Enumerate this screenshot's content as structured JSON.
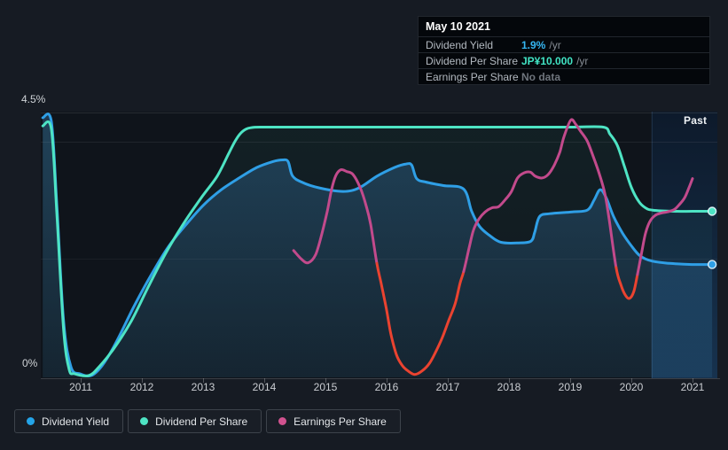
{
  "page": {
    "background": "#161b23"
  },
  "y_axis": {
    "max_label": "4.5%",
    "min_label": "0%"
  },
  "x_axis": {
    "years": [
      "2011",
      "2012",
      "2013",
      "2014",
      "2015",
      "2016",
      "2017",
      "2018",
      "2019",
      "2020",
      "2021"
    ]
  },
  "past_label": "Past",
  "tooltip": {
    "date": "May 10 2021",
    "rows": [
      {
        "label": "Dividend Yield",
        "value": "1.9%",
        "unit": "/yr",
        "color": "#35b6f2"
      },
      {
        "label": "Dividend Per Share",
        "value": "JP¥10.000",
        "unit": "/yr",
        "color": "#41e4c4"
      },
      {
        "label": "Earnings Per Share",
        "value": "No data",
        "unit": "",
        "color": "#6f757d"
      }
    ]
  },
  "legend": {
    "items": [
      {
        "id": "dividend-yield",
        "label": "Dividend Yield",
        "color": "#24a4e8"
      },
      {
        "id": "dividend-per-share",
        "label": "Dividend Per Share",
        "color": "#4ee4c4"
      },
      {
        "id": "earnings-per-share",
        "label": "Earnings Per Share",
        "color": "#d1528f"
      }
    ]
  },
  "chart_data": {
    "type": "line",
    "title": "",
    "xlabel": "",
    "ylabel": "",
    "x_range": [
      2010.38,
      2021.35
    ],
    "ylim": [
      0,
      4.5
    ],
    "y_unit": "% (left axis labels 0% and 4.5%; gridlines at 0, 2, 4, 4.5)",
    "gridline_values": [
      4.5,
      4.0,
      2.0,
      0.0
    ],
    "past_region_start": 2020.33,
    "legend_position": "bottom",
    "note": "Dividend Per Share and Earnings Per Share are plotted on an unlabeled scale; point values below are given in left-axis-equivalent % positions. Latest DPS = JP¥10.000/yr, latest yield = 1.9%/yr (tooltip).",
    "series": [
      {
        "name": "Dividend Yield",
        "color": "#2f9fe6",
        "end_marker": true,
        "latest": "1.9% /yr",
        "points": [
          [
            2010.38,
            4.41
          ],
          [
            2010.52,
            4.35
          ],
          [
            2010.61,
            2.92
          ],
          [
            2010.72,
            0.94
          ],
          [
            2010.84,
            0.15
          ],
          [
            2010.99,
            0.03
          ],
          [
            2011.17,
            0.0
          ],
          [
            2011.35,
            0.17
          ],
          [
            2011.57,
            0.55
          ],
          [
            2011.86,
            1.16
          ],
          [
            2012.14,
            1.7
          ],
          [
            2012.43,
            2.2
          ],
          [
            2012.72,
            2.58
          ],
          [
            2013.01,
            2.92
          ],
          [
            2013.3,
            3.18
          ],
          [
            2013.59,
            3.38
          ],
          [
            2013.88,
            3.56
          ],
          [
            2014.14,
            3.66
          ],
          [
            2014.3,
            3.69
          ],
          [
            2014.39,
            3.66
          ],
          [
            2014.46,
            3.42
          ],
          [
            2014.61,
            3.31
          ],
          [
            2014.9,
            3.21
          ],
          [
            2015.29,
            3.15
          ],
          [
            2015.55,
            3.21
          ],
          [
            2015.84,
            3.41
          ],
          [
            2016.13,
            3.56
          ],
          [
            2016.32,
            3.62
          ],
          [
            2016.41,
            3.6
          ],
          [
            2016.49,
            3.37
          ],
          [
            2016.64,
            3.31
          ],
          [
            2016.93,
            3.25
          ],
          [
            2017.26,
            3.19
          ],
          [
            2017.39,
            2.81
          ],
          [
            2017.52,
            2.55
          ],
          [
            2017.68,
            2.4
          ],
          [
            2017.87,
            2.28
          ],
          [
            2018.16,
            2.27
          ],
          [
            2018.36,
            2.3
          ],
          [
            2018.42,
            2.45
          ],
          [
            2018.5,
            2.72
          ],
          [
            2018.67,
            2.77
          ],
          [
            2019.03,
            2.8
          ],
          [
            2019.28,
            2.83
          ],
          [
            2019.39,
            3.0
          ],
          [
            2019.49,
            3.18
          ],
          [
            2019.59,
            3.04
          ],
          [
            2019.71,
            2.72
          ],
          [
            2019.86,
            2.43
          ],
          [
            2020.0,
            2.22
          ],
          [
            2020.14,
            2.05
          ],
          [
            2020.33,
            1.96
          ],
          [
            2020.62,
            1.92
          ],
          [
            2020.99,
            1.9
          ],
          [
            2021.32,
            1.9
          ]
        ]
      },
      {
        "name": "Dividend Per Share",
        "color": "#4ee4c4",
        "end_marker": true,
        "latest": "JP¥10.000 /yr",
        "points": [
          [
            2010.38,
            4.27
          ],
          [
            2010.52,
            4.22
          ],
          [
            2010.61,
            2.77
          ],
          [
            2010.72,
            0.79
          ],
          [
            2010.81,
            0.11
          ],
          [
            2010.9,
            0.03
          ],
          [
            2011.13,
            0.0
          ],
          [
            2011.3,
            0.15
          ],
          [
            2011.54,
            0.46
          ],
          [
            2011.83,
            0.94
          ],
          [
            2012.12,
            1.55
          ],
          [
            2012.41,
            2.13
          ],
          [
            2012.7,
            2.63
          ],
          [
            2012.99,
            3.07
          ],
          [
            2013.23,
            3.41
          ],
          [
            2013.42,
            3.8
          ],
          [
            2013.54,
            4.04
          ],
          [
            2013.65,
            4.18
          ],
          [
            2013.78,
            4.24
          ],
          [
            2014.03,
            4.25
          ],
          [
            2015.0,
            4.25
          ],
          [
            2016.0,
            4.25
          ],
          [
            2017.0,
            4.25
          ],
          [
            2018.0,
            4.25
          ],
          [
            2019.0,
            4.25
          ],
          [
            2019.54,
            4.25
          ],
          [
            2019.65,
            4.13
          ],
          [
            2019.77,
            3.94
          ],
          [
            2019.88,
            3.6
          ],
          [
            2020.0,
            3.22
          ],
          [
            2020.12,
            2.98
          ],
          [
            2020.23,
            2.87
          ],
          [
            2020.35,
            2.83
          ],
          [
            2020.7,
            2.81
          ],
          [
            2021.0,
            2.81
          ],
          [
            2021.32,
            2.81
          ]
        ]
      },
      {
        "name": "Earnings Per Share",
        "color": "#c24a8c",
        "negative_color": "#ea4330",
        "end_marker": false,
        "latest": "No data",
        "segments": [
          {
            "color": "#c24a8c",
            "points": [
              [
                2014.48,
                2.14
              ],
              [
                2014.61,
                1.99
              ],
              [
                2014.72,
                1.93
              ],
              [
                2014.84,
                2.07
              ],
              [
                2014.94,
                2.42
              ],
              [
                2015.03,
                2.81
              ],
              [
                2015.1,
                3.18
              ],
              [
                2015.17,
                3.42
              ],
              [
                2015.25,
                3.52
              ],
              [
                2015.35,
                3.49
              ],
              [
                2015.45,
                3.44
              ],
              [
                2015.57,
                3.21
              ],
              [
                2015.67,
                2.89
              ],
              [
                2015.74,
                2.58
              ],
              [
                2015.84,
                1.92
              ]
            ]
          },
          {
            "color": "#ea4330",
            "points": [
              [
                2015.84,
                1.92
              ],
              [
                2015.91,
                1.58
              ],
              [
                2016.0,
                1.12
              ],
              [
                2016.07,
                0.71
              ],
              [
                2016.16,
                0.36
              ],
              [
                2016.25,
                0.18
              ],
              [
                2016.35,
                0.08
              ],
              [
                2016.46,
                0.02
              ],
              [
                2016.58,
                0.08
              ],
              [
                2016.7,
                0.21
              ],
              [
                2016.8,
                0.4
              ],
              [
                2016.91,
                0.65
              ],
              [
                2017.01,
                0.93
              ],
              [
                2017.12,
                1.23
              ],
              [
                2017.2,
                1.58
              ],
              [
                2017.26,
                1.78
              ]
            ]
          },
          {
            "color": "#c24a8c",
            "points": [
              [
                2017.26,
                1.78
              ],
              [
                2017.35,
                2.19
              ],
              [
                2017.42,
                2.49
              ],
              [
                2017.51,
                2.68
              ],
              [
                2017.61,
                2.8
              ],
              [
                2017.72,
                2.87
              ],
              [
                2017.83,
                2.89
              ],
              [
                2017.94,
                3.01
              ],
              [
                2018.04,
                3.15
              ],
              [
                2018.14,
                3.38
              ],
              [
                2018.25,
                3.47
              ],
              [
                2018.35,
                3.48
              ],
              [
                2018.43,
                3.41
              ],
              [
                2018.54,
                3.38
              ],
              [
                2018.64,
                3.44
              ],
              [
                2018.74,
                3.6
              ],
              [
                2018.83,
                3.82
              ],
              [
                2018.9,
                4.09
              ],
              [
                2019.01,
                4.37
              ],
              [
                2019.09,
                4.3
              ],
              [
                2019.17,
                4.18
              ],
              [
                2019.28,
                4.01
              ],
              [
                2019.38,
                3.74
              ],
              [
                2019.48,
                3.44
              ],
              [
                2019.57,
                3.1
              ],
              [
                2019.64,
                2.65
              ],
              [
                2019.75,
                1.85
              ]
            ]
          },
          {
            "color": "#ea4330",
            "points": [
              [
                2019.75,
                1.85
              ],
              [
                2019.83,
                1.55
              ],
              [
                2019.9,
                1.38
              ],
              [
                2019.97,
                1.32
              ],
              [
                2020.04,
                1.44
              ],
              [
                2020.1,
                1.73
              ]
            ]
          },
          {
            "color": "#c24a8c",
            "points": [
              [
                2020.1,
                1.73
              ],
              [
                2020.17,
                2.11
              ],
              [
                2020.23,
                2.43
              ],
              [
                2020.3,
                2.63
              ],
              [
                2020.39,
                2.74
              ],
              [
                2020.49,
                2.78
              ],
              [
                2020.59,
                2.8
              ],
              [
                2020.7,
                2.84
              ],
              [
                2020.78,
                2.92
              ],
              [
                2020.87,
                3.04
              ],
              [
                2020.94,
                3.21
              ],
              [
                2021.0,
                3.37
              ]
            ]
          }
        ]
      }
    ]
  }
}
